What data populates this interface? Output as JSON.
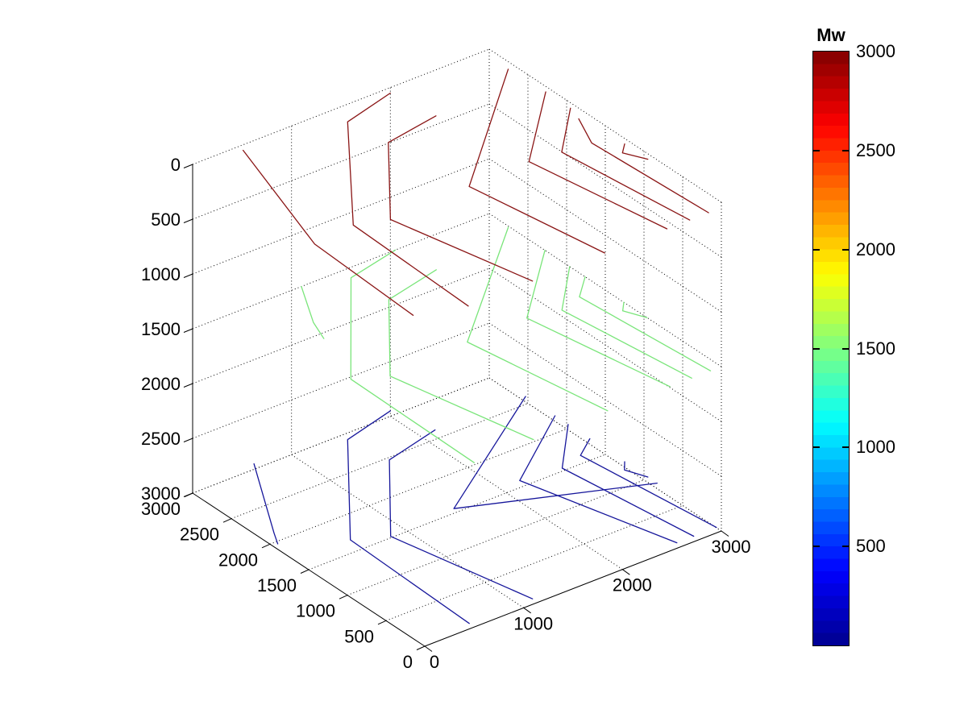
{
  "figure": {
    "background": "#ffffff"
  },
  "chart_data": {
    "type": "contour3",
    "view": "3d",
    "x_range": [
      0,
      3000
    ],
    "y_range": [
      0,
      3000
    ],
    "z_range": [
      0,
      3000
    ],
    "z_direction": "reversed",
    "grid": "on",
    "x_ticks": [
      0,
      1000,
      2000,
      3000
    ],
    "y_ticks": [
      0,
      500,
      1000,
      1500,
      2000,
      2500,
      3000
    ],
    "z_ticks": [
      0,
      500,
      1000,
      1500,
      2000,
      2500,
      3000
    ],
    "x_grid_values": [
      1000,
      2000,
      3000
    ],
    "y_grid_values": [
      500,
      1000,
      1500,
      2000,
      2500,
      3000
    ],
    "z_grid_values": [
      0,
      500,
      1000,
      1500,
      2000,
      2500,
      3000
    ],
    "colorbar": {
      "title": "Mw",
      "min": 0,
      "max": 3000,
      "tick_values": [
        500,
        1000,
        1500,
        2000,
        2500,
        3000
      ],
      "colormap": "jet",
      "stops": [
        [
          0.0,
          "#00008f"
        ],
        [
          0.125,
          "#0000ff"
        ],
        [
          0.375,
          "#00ffff"
        ],
        [
          0.625,
          "#ffff00"
        ],
        [
          0.875,
          "#ff0000"
        ],
        [
          1.0,
          "#800000"
        ]
      ]
    },
    "contour_groups": [
      {
        "name": "low",
        "level": 50,
        "color": "#16169b",
        "lines": [
          [
            [
              620,
              3000
            ],
            [
              80,
              2050
            ],
            [
              0,
              1900
            ]
          ],
          [
            [
              2000,
              3000
            ],
            [
              1450,
              2850
            ],
            [
              500,
              1600
            ],
            [
              450,
              0
            ]
          ],
          [
            [
              2100,
              2550
            ],
            [
              1520,
              2400
            ],
            [
              790,
              1450
            ],
            [
              1090,
              0
            ]
          ],
          [
            [
              3000,
              2530
            ],
            [
              1460,
              1490
            ],
            [
              3000,
              830
            ]
          ],
          [
            [
              3000,
              2150
            ],
            [
              2150,
              1520
            ],
            [
              2550,
              0
            ]
          ],
          [
            [
              3000,
              1980
            ],
            [
              2540,
              1470
            ],
            [
              2720,
              0
            ]
          ],
          [
            [
              3000,
              1700
            ],
            [
              2780,
              1540
            ],
            [
              2950,
              0
            ]
          ],
          [
            [
              3000,
              1250
            ],
            [
              2920,
              1150
            ],
            [
              3000,
              950
            ]
          ]
        ]
      },
      {
        "name": "mid",
        "level": 1500,
        "color": "#7ae57a",
        "lines": [
          [
            [
              1100,
              3000
            ],
            [
              830,
              2500
            ],
            [
              740,
              2250
            ]
          ],
          [
            [
              2050,
              3000
            ],
            [
              1500,
              2870
            ],
            [
              520,
              1620
            ],
            [
              500,
              0
            ]
          ],
          [
            [
              2120,
              2560
            ],
            [
              1530,
              2420
            ],
            [
              800,
              1470
            ],
            [
              1100,
              0
            ]
          ],
          [
            [
              2990,
              2740
            ],
            [
              1620,
              1520
            ],
            [
              1850,
              0
            ]
          ],
          [
            [
              3000,
              2280
            ],
            [
              2230,
              1530
            ],
            [
              2480,
              0
            ]
          ],
          [
            [
              3000,
              1960
            ],
            [
              2530,
              1460
            ],
            [
              2700,
              0
            ]
          ],
          [
            [
              3000,
              1760
            ],
            [
              2770,
              1540
            ],
            [
              2890,
              0
            ]
          ],
          [
            [
              3000,
              1260
            ],
            [
              2910,
              1160
            ],
            [
              3000,
              960
            ]
          ]
        ]
      },
      {
        "name": "high",
        "level": 2950,
        "color": "#8a1515",
        "lines": [
          [
            [
              510,
              3000
            ],
            [
              60,
              1500
            ],
            [
              0,
              150
            ]
          ],
          [
            [
              2000,
              3000
            ],
            [
              1450,
              2850
            ],
            [
              490,
              1550
            ],
            [
              440,
              0
            ]
          ],
          [
            [
              2070,
              2500
            ],
            [
              1510,
              2400
            ],
            [
              780,
              1440
            ],
            [
              1090,
              0
            ]
          ],
          [
            [
              2980,
              2730
            ],
            [
              1600,
              1470
            ],
            [
              1820,
              0
            ]
          ],
          [
            [
              3000,
              2270
            ],
            [
              2220,
              1490
            ],
            [
              2450,
              0
            ]
          ],
          [
            [
              3000,
              1950
            ],
            [
              2520,
              1450
            ],
            [
              2680,
              0
            ]
          ],
          [
            [
              2950,
              1780
            ],
            [
              2800,
              1420
            ],
            [
              2870,
              0
            ]
          ],
          [
            [
              3000,
              1250
            ],
            [
              2900,
              1150
            ],
            [
              3000,
              950
            ]
          ]
        ]
      }
    ]
  }
}
